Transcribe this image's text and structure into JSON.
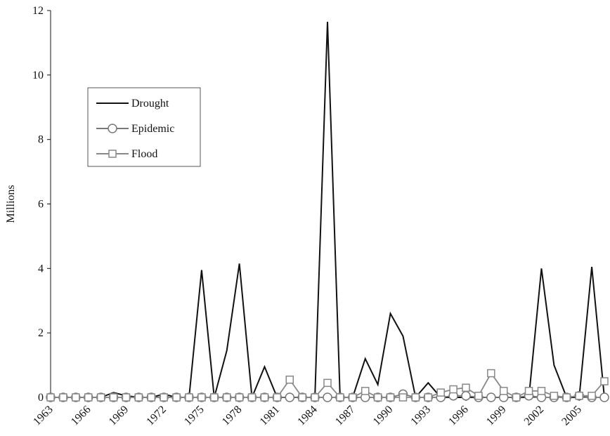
{
  "chart_data": {
    "type": "line",
    "y_label": "Millions",
    "x": [
      1963,
      1964,
      1965,
      1966,
      1967,
      1968,
      1969,
      1970,
      1971,
      1972,
      1973,
      1974,
      1975,
      1976,
      1977,
      1978,
      1979,
      1980,
      1981,
      1982,
      1983,
      1984,
      1985,
      1986,
      1987,
      1988,
      1989,
      1990,
      1991,
      1992,
      1993,
      1994,
      1995,
      1996,
      1997,
      1998,
      1999,
      2000,
      2001,
      2002,
      2003,
      2004,
      2005,
      2006,
      2007
    ],
    "xlim": [
      1963,
      2007
    ],
    "xticks": [
      1963,
      1966,
      1969,
      1972,
      1975,
      1978,
      1981,
      1984,
      1987,
      1990,
      1993,
      1996,
      1999,
      2002,
      2005
    ],
    "ylim": [
      0,
      12
    ],
    "yticks": [
      0,
      2,
      4,
      6,
      8,
      10,
      12
    ],
    "legend": "upper left",
    "series": [
      {
        "name": "Drought",
        "color": "#111111",
        "marker": "none",
        "values": [
          0,
          0,
          0,
          0,
          0,
          0.15,
          0.05,
          0,
          0,
          0.1,
          0,
          0,
          3.95,
          0,
          1.45,
          4.15,
          0,
          0.95,
          0,
          0,
          0,
          0,
          11.65,
          0,
          0,
          1.2,
          0.4,
          2.6,
          1.9,
          0,
          0.45,
          0,
          0,
          0,
          0,
          0,
          0,
          0,
          0,
          4.0,
          1.0,
          0,
          0,
          4.05,
          0
        ]
      },
      {
        "name": "Epidemic",
        "color": "#777777",
        "marker": "circle",
        "values": [
          0,
          0,
          0,
          0,
          0,
          0,
          0,
          0,
          0,
          0,
          0,
          0,
          0,
          0,
          0,
          0,
          0,
          0,
          0,
          0,
          0,
          0,
          0,
          0,
          0,
          0,
          0,
          0,
          0.1,
          0,
          0,
          0,
          0.05,
          0.05,
          0,
          0,
          0,
          0,
          0.05,
          0,
          0,
          0,
          0.05,
          0,
          0
        ]
      },
      {
        "name": "Flood",
        "color": "#888888",
        "marker": "square",
        "values": [
          0,
          0,
          0,
          0,
          0,
          0,
          0,
          0,
          0,
          0,
          0,
          0,
          0,
          0,
          0,
          0,
          0,
          0,
          0,
          0.55,
          0,
          0,
          0.45,
          0,
          0,
          0.2,
          0,
          0,
          0,
          0,
          0,
          0.15,
          0.25,
          0.3,
          0.05,
          0.75,
          0.2,
          0,
          0.2,
          0.2,
          0.05,
          0,
          0.05,
          0.05,
          0.5
        ]
      }
    ]
  }
}
